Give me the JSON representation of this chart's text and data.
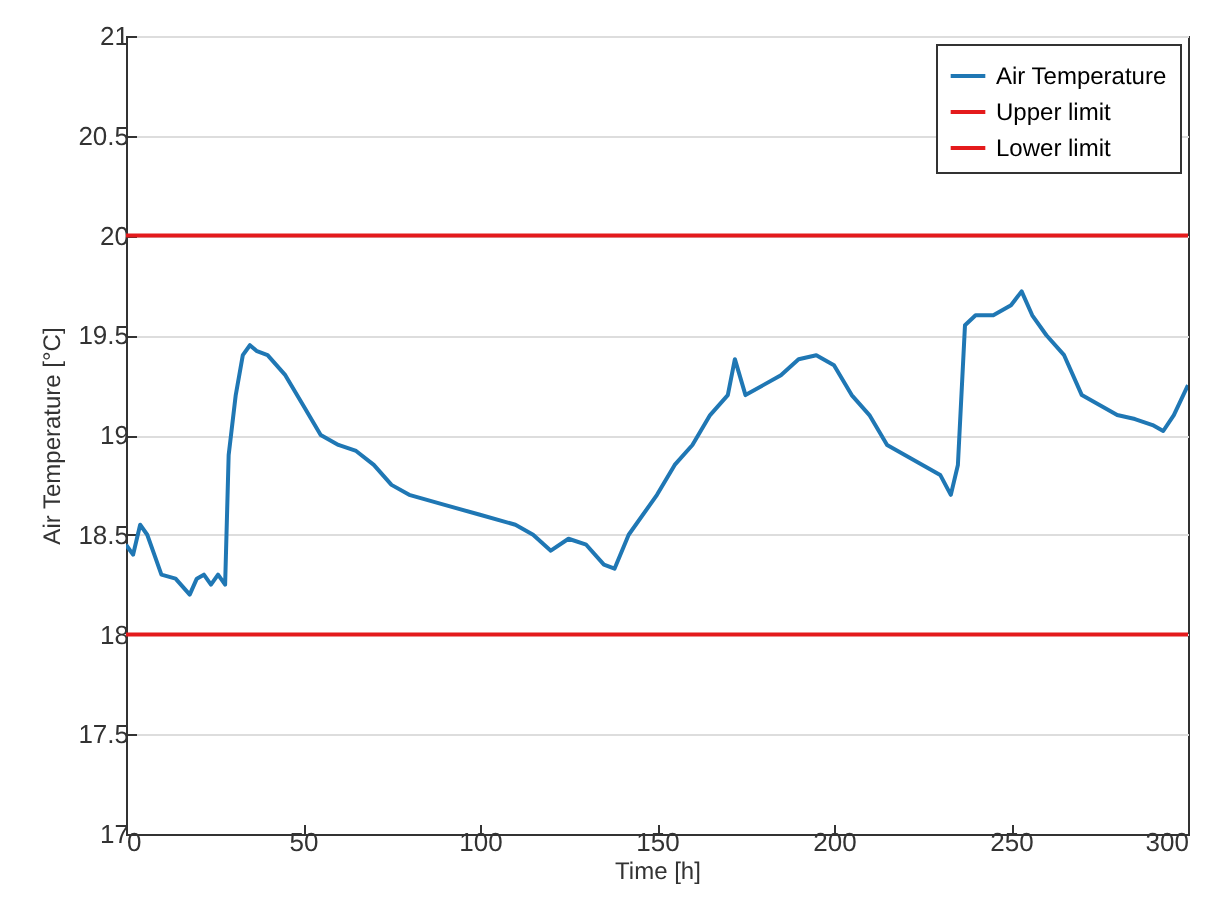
{
  "chart_data": {
    "type": "line",
    "xlabel": "Time [h]",
    "ylabel": "Air Temperature [°C]",
    "xlim": [
      0,
      300
    ],
    "xticks": [
      0,
      50,
      100,
      150,
      200,
      250,
      300
    ],
    "ylim": [
      17,
      21
    ],
    "yticks": [
      17,
      17.5,
      18,
      18.5,
      19,
      19.5,
      20,
      20.5,
      21
    ],
    "grid": "y",
    "legend": "top right",
    "line_style": "solid",
    "series": [
      {
        "name": "Air Temperature",
        "color": "#1f77b4",
        "x": [
          0,
          2,
          4,
          6,
          8,
          10,
          14,
          18,
          20,
          22,
          24,
          26,
          28,
          29,
          31,
          33,
          35,
          37,
          40,
          45,
          50,
          55,
          60,
          65,
          70,
          75,
          80,
          90,
          100,
          110,
          115,
          120,
          125,
          130,
          135,
          138,
          142,
          150,
          155,
          160,
          165,
          170,
          172,
          175,
          180,
          185,
          190,
          195,
          200,
          205,
          210,
          215,
          220,
          225,
          230,
          233,
          235,
          237,
          240,
          245,
          250,
          253,
          256,
          260,
          265,
          270,
          275,
          280,
          285,
          290,
          293,
          296,
          300
        ],
        "values": [
          18.45,
          18.4,
          18.55,
          18.5,
          18.4,
          18.3,
          18.28,
          18.2,
          18.28,
          18.3,
          18.25,
          18.3,
          18.25,
          18.9,
          19.2,
          19.4,
          19.45,
          19.42,
          19.4,
          19.3,
          19.15,
          19.0,
          18.95,
          18.92,
          18.85,
          18.75,
          18.7,
          18.65,
          18.6,
          18.55,
          18.5,
          18.42,
          18.48,
          18.45,
          18.35,
          18.33,
          18.5,
          18.7,
          18.85,
          18.95,
          19.1,
          19.2,
          19.38,
          19.2,
          19.25,
          19.3,
          19.38,
          19.4,
          19.35,
          19.2,
          19.1,
          18.95,
          18.9,
          18.85,
          18.8,
          18.7,
          18.85,
          19.55,
          19.6,
          19.6,
          19.65,
          19.72,
          19.6,
          19.5,
          19.4,
          19.2,
          19.15,
          19.1,
          19.08,
          19.05,
          19.02,
          19.1,
          19.25
        ]
      },
      {
        "name": "Upper limit",
        "color": "#e41a1c",
        "x": [
          0,
          300
        ],
        "values": [
          20,
          20
        ]
      },
      {
        "name": "Lower limit",
        "color": "#e41a1c",
        "x": [
          0,
          300
        ],
        "values": [
          18,
          18
        ]
      }
    ]
  }
}
